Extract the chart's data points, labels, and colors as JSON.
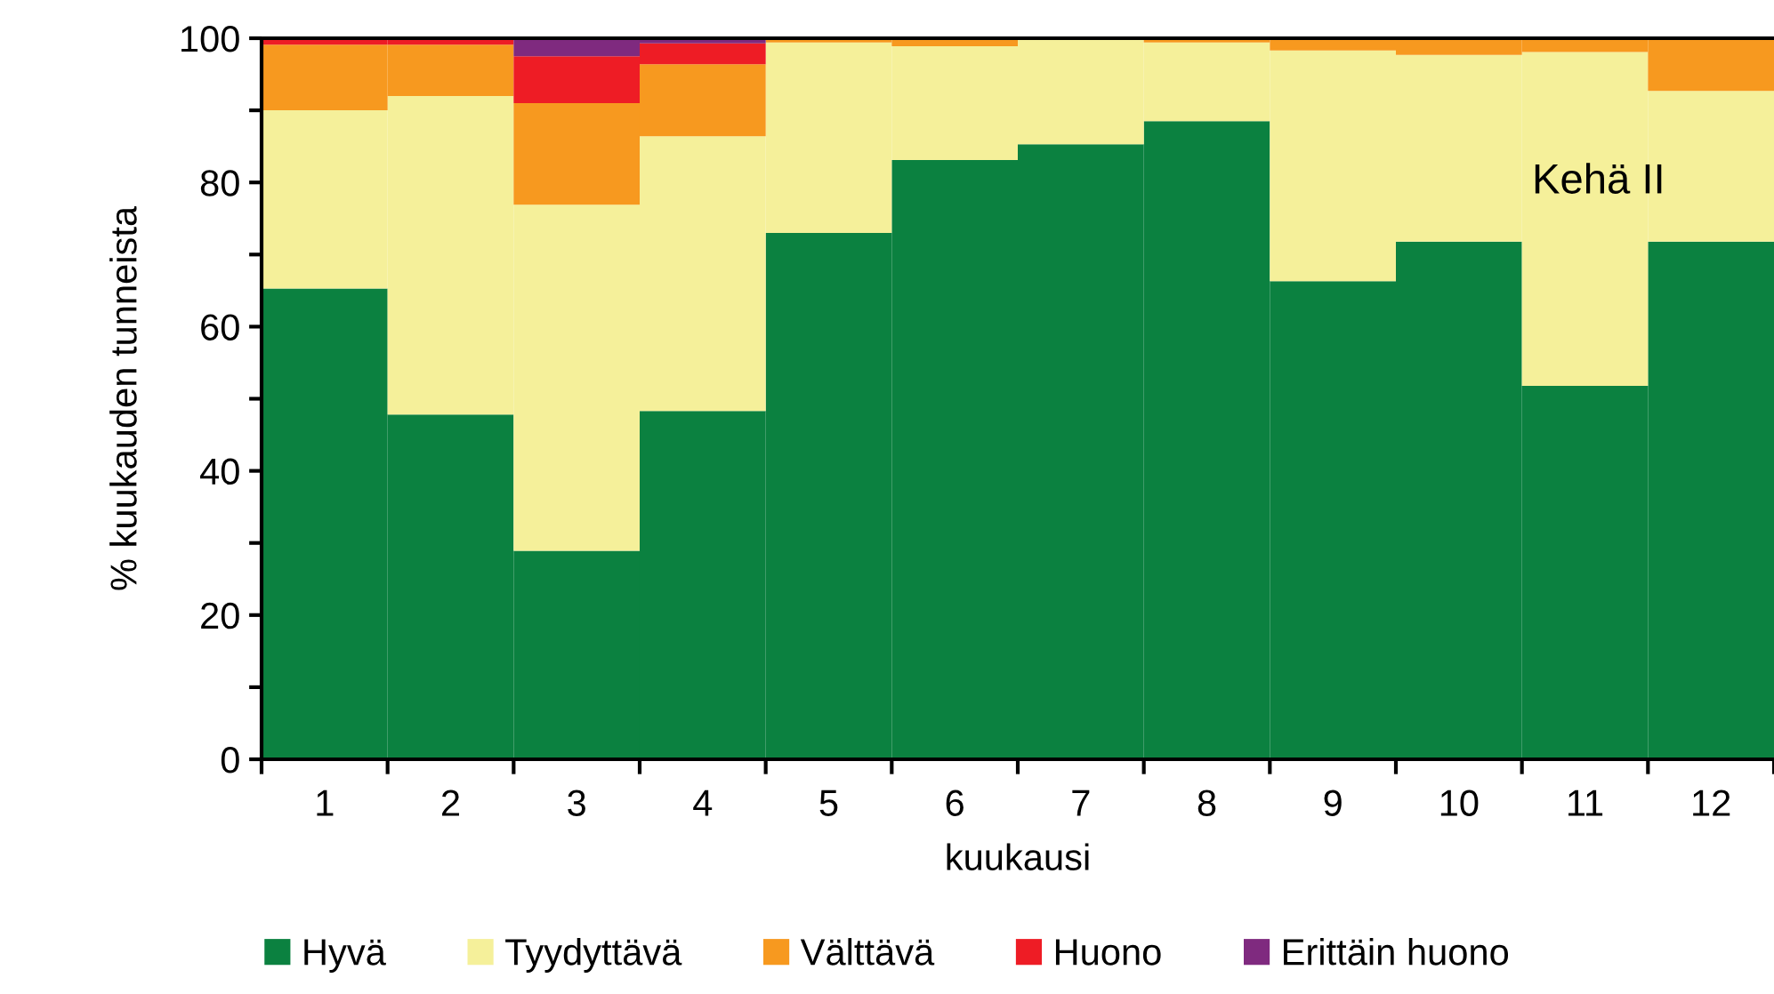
{
  "chart_data": {
    "type": "bar",
    "stacked": true,
    "ylabel": "% kuukauden tunneista",
    "xlabel": "kuukausi",
    "categories": [
      "1",
      "2",
      "3",
      "4",
      "5",
      "6",
      "7",
      "8",
      "9",
      "10",
      "11",
      "12"
    ],
    "series": [
      {
        "name": "Hyvä",
        "color": "#0b8140",
        "values": [
          65.3,
          47.8,
          28.9,
          48.3,
          73.0,
          83.1,
          85.3,
          88.5,
          66.3,
          71.8,
          51.8,
          71.8
        ]
      },
      {
        "name": "Tyydyttävä",
        "color": "#f5f09a",
        "values": [
          24.7,
          44.2,
          48.0,
          38.1,
          26.4,
          15.8,
          14.7,
          10.9,
          32.0,
          25.9,
          46.3,
          20.9
        ]
      },
      {
        "name": "Välttävä",
        "color": "#f7991f",
        "values": [
          9.1,
          7.1,
          14.1,
          10.0,
          0.6,
          1.1,
          0,
          0.6,
          1.7,
          2.3,
          1.9,
          7.3
        ]
      },
      {
        "name": "Huono",
        "color": "#ee1c25",
        "values": [
          0.9,
          0.9,
          6.5,
          2.9,
          0,
          0,
          0,
          0,
          0,
          0,
          0,
          0
        ]
      },
      {
        "name": "Erittäin huono",
        "color": "#7f2a7f",
        "values": [
          0,
          0,
          2.5,
          0.7,
          0,
          0,
          0,
          0,
          0,
          0,
          0,
          0
        ]
      }
    ],
    "ylim": [
      0,
      100
    ],
    "yticks": [
      0,
      {
        "value": 10,
        "label": null
      },
      20,
      {
        "value": 30,
        "label": null
      },
      40,
      {
        "value": 50,
        "label": null
      },
      60,
      {
        "value": 70,
        "label": null
      },
      80,
      {
        "value": 90,
        "label": null
      },
      100
    ],
    "annotations": [
      "Kehä II"
    ],
    "legend": "bottom",
    "grid": false
  }
}
